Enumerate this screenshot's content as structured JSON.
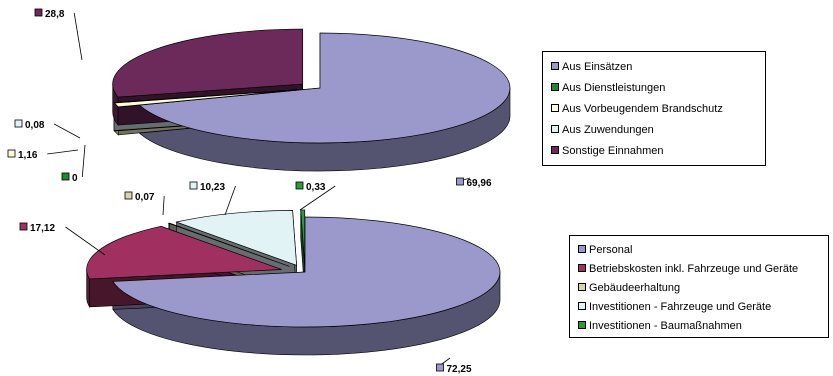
{
  "chart_data": [
    {
      "type": "pie",
      "style": "3d-exploded",
      "legend_position": "right",
      "categories": [
        "Aus Einsätzen",
        "Aus Dienstleistungen",
        "Aus Vorbeugendem Brandschutz",
        "Aus Zuwendungen",
        "Sonstige Einnahmen"
      ],
      "values": [
        69.96,
        0,
        1.16,
        0.08,
        28.8
      ],
      "value_labels": [
        "69,96",
        "0",
        "1,16",
        "0,08",
        "28,8"
      ],
      "colors": [
        "#9b99cc",
        "#1f8a2a",
        "#fdfcd2",
        "#dff2f6",
        "#6b2a5a"
      ]
    },
    {
      "type": "pie",
      "style": "3d-exploded",
      "legend_position": "right",
      "categories": [
        "Personal",
        "Betriebskosten inkl. Fahrzeuge und Geräte",
        "Gebäudeerhaltung",
        "Investitionen - Fahrzeuge und Geräte",
        "Investitionen - Baumaßnahmen"
      ],
      "values": [
        72.25,
        17.12,
        0.07,
        10.23,
        0.33
      ],
      "value_labels": [
        "72,25",
        "17,12",
        "0,07",
        "10,23",
        "0,33"
      ],
      "colors": [
        "#9b99cc",
        "#a03060",
        "#d8d6a8",
        "#e2f3f6",
        "#2a9a3a"
      ]
    }
  ]
}
